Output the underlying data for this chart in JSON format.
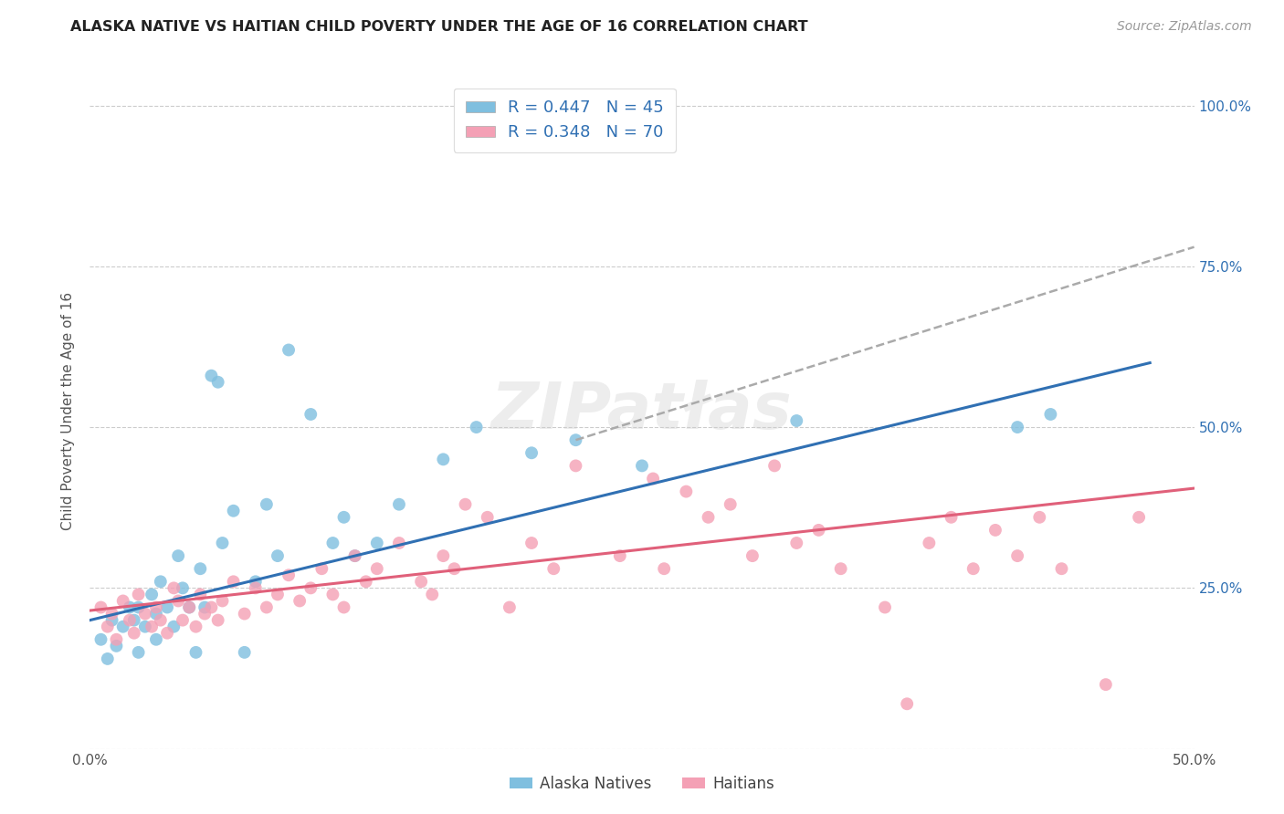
{
  "title": "ALASKA NATIVE VS HAITIAN CHILD POVERTY UNDER THE AGE OF 16 CORRELATION CHART",
  "source": "Source: ZipAtlas.com",
  "ylabel": "Child Poverty Under the Age of 16",
  "xlim": [
    0.0,
    0.5
  ],
  "ylim": [
    0.0,
    1.05
  ],
  "ytick_positions": [
    0.0,
    0.25,
    0.5,
    0.75,
    1.0
  ],
  "right_ytick_labels": [
    "",
    "25.0%",
    "50.0%",
    "75.0%",
    "100.0%"
  ],
  "xtick_positions": [
    0.0,
    0.1,
    0.2,
    0.3,
    0.4,
    0.5
  ],
  "xtick_labels": [
    "0.0%",
    "",
    "",
    "",
    "",
    "50.0%"
  ],
  "legend_r1": "R = 0.447   N = 45",
  "legend_r2": "R = 0.348   N = 70",
  "blue_color": "#7fbfdf",
  "pink_color": "#f4a0b5",
  "blue_line_color": "#3070b3",
  "pink_line_color": "#e0607a",
  "dashed_color": "#aaaaaa",
  "blue_scatter_x": [
    0.005,
    0.008,
    0.01,
    0.012,
    0.015,
    0.018,
    0.02,
    0.022,
    0.022,
    0.025,
    0.028,
    0.03,
    0.03,
    0.032,
    0.035,
    0.038,
    0.04,
    0.042,
    0.045,
    0.048,
    0.05,
    0.052,
    0.055,
    0.058,
    0.06,
    0.065,
    0.07,
    0.075,
    0.08,
    0.085,
    0.09,
    0.1,
    0.11,
    0.115,
    0.12,
    0.13,
    0.14,
    0.16,
    0.175,
    0.2,
    0.22,
    0.25,
    0.32,
    0.42,
    0.435
  ],
  "blue_scatter_y": [
    0.17,
    0.14,
    0.2,
    0.16,
    0.19,
    0.22,
    0.2,
    0.15,
    0.22,
    0.19,
    0.24,
    0.17,
    0.21,
    0.26,
    0.22,
    0.19,
    0.3,
    0.25,
    0.22,
    0.15,
    0.28,
    0.22,
    0.58,
    0.57,
    0.32,
    0.37,
    0.15,
    0.26,
    0.38,
    0.3,
    0.62,
    0.52,
    0.32,
    0.36,
    0.3,
    0.32,
    0.38,
    0.45,
    0.5,
    0.46,
    0.48,
    0.44,
    0.51,
    0.5,
    0.52
  ],
  "pink_scatter_x": [
    0.005,
    0.008,
    0.01,
    0.012,
    0.015,
    0.018,
    0.02,
    0.022,
    0.025,
    0.028,
    0.03,
    0.032,
    0.035,
    0.038,
    0.04,
    0.042,
    0.045,
    0.048,
    0.05,
    0.052,
    0.055,
    0.058,
    0.06,
    0.065,
    0.07,
    0.075,
    0.08,
    0.085,
    0.09,
    0.095,
    0.1,
    0.105,
    0.11,
    0.115,
    0.12,
    0.125,
    0.13,
    0.14,
    0.15,
    0.155,
    0.16,
    0.165,
    0.17,
    0.18,
    0.19,
    0.2,
    0.21,
    0.22,
    0.24,
    0.255,
    0.26,
    0.27,
    0.28,
    0.29,
    0.3,
    0.31,
    0.32,
    0.33,
    0.34,
    0.36,
    0.37,
    0.38,
    0.39,
    0.4,
    0.41,
    0.42,
    0.43,
    0.44,
    0.46,
    0.475
  ],
  "pink_scatter_y": [
    0.22,
    0.19,
    0.21,
    0.17,
    0.23,
    0.2,
    0.18,
    0.24,
    0.21,
    0.19,
    0.22,
    0.2,
    0.18,
    0.25,
    0.23,
    0.2,
    0.22,
    0.19,
    0.24,
    0.21,
    0.22,
    0.2,
    0.23,
    0.26,
    0.21,
    0.25,
    0.22,
    0.24,
    0.27,
    0.23,
    0.25,
    0.28,
    0.24,
    0.22,
    0.3,
    0.26,
    0.28,
    0.32,
    0.26,
    0.24,
    0.3,
    0.28,
    0.38,
    0.36,
    0.22,
    0.32,
    0.28,
    0.44,
    0.3,
    0.42,
    0.28,
    0.4,
    0.36,
    0.38,
    0.3,
    0.44,
    0.32,
    0.34,
    0.28,
    0.22,
    0.07,
    0.32,
    0.36,
    0.28,
    0.34,
    0.3,
    0.36,
    0.28,
    0.1,
    0.36
  ],
  "blue_trend_x": [
    0.0,
    0.48
  ],
  "blue_trend_y": [
    0.2,
    0.6
  ],
  "pink_trend_x": [
    0.0,
    0.5
  ],
  "pink_trend_y": [
    0.215,
    0.405
  ],
  "dashed_trend_x": [
    0.22,
    0.5
  ],
  "dashed_trend_y": [
    0.48,
    0.78
  ]
}
